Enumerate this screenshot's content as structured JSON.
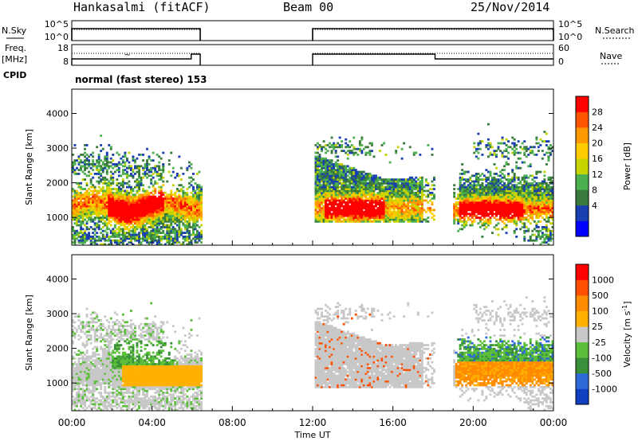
{
  "header": {
    "station": "Hankasalmi (fitACF)",
    "beam": "Beam 00",
    "date": "25/Nov/2014"
  },
  "status_panel": {
    "left_labels": [
      "N.Sky",
      "Freq.",
      "[MHz]",
      "CPID"
    ],
    "right_labels": [
      "N.Search",
      "Nave"
    ],
    "nsky_ticks": [
      "10^5",
      "10^0"
    ],
    "nsearch_ticks": [
      "10^5",
      "10^0"
    ],
    "freq_ticks": [
      "18",
      "8"
    ],
    "nave_ticks": [
      "60",
      "0"
    ],
    "cpid_text": "normal (fast stereo) 153",
    "on_intervals_hours": [
      [
        0.0,
        6.4
      ],
      [
        12.0,
        24.0
      ]
    ],
    "nave_step_hour": 18.1
  },
  "chart_data": [
    {
      "type": "heatmap",
      "name": "power",
      "ylabel": "Slant Range [km]",
      "yticks": [
        "4000",
        "3000",
        "2000",
        "1000"
      ],
      "ylim": [
        200,
        4700
      ],
      "colorbar_label": "Power [dB]",
      "colorbar_ticks": [
        "28",
        "24",
        "20",
        "16",
        "12",
        "8",
        "4"
      ],
      "colorbar_colors": [
        "#0000ff",
        "#1a3fb0",
        "#3a7a3a",
        "#4caf50",
        "#c8d400",
        "#ffcc00",
        "#ff9900",
        "#ff5500",
        "#ff0000"
      ]
    },
    {
      "type": "heatmap",
      "name": "velocity",
      "ylabel": "Slant Range [km]",
      "yticks": [
        "4000",
        "3000",
        "2000",
        "1000"
      ],
      "ylim": [
        200,
        4700
      ],
      "colorbar_label": "Velocity [m s-1]",
      "colorbar_ticks": [
        "1000",
        "500",
        "100",
        "25",
        "-25",
        "-100",
        "-500",
        "-1000"
      ],
      "colorbar_colors": [
        "#1040c0",
        "#2e6bd8",
        "#3a8f3a",
        "#5cbf3a",
        "#c8c8c8",
        "#ffb000",
        "#ff8c00",
        "#ff5000",
        "#ff0000"
      ]
    }
  ],
  "x_axis": {
    "label": "Time UT",
    "ticks": [
      "00:00",
      "04:00",
      "08:00",
      "12:00",
      "16:00",
      "20:00",
      "00:00"
    ],
    "xlim": [
      0,
      24
    ]
  }
}
